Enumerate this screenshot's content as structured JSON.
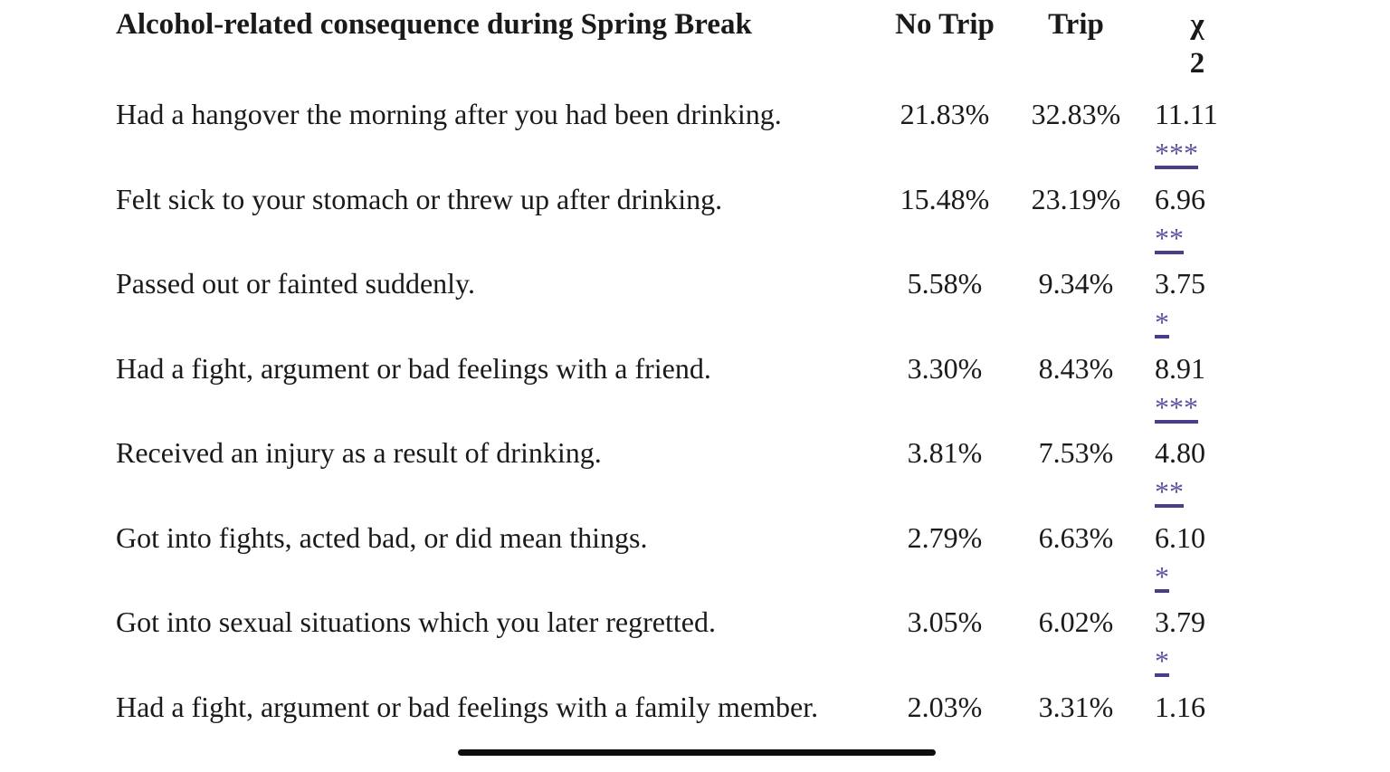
{
  "table": {
    "headers": {
      "consequence": "Alcohol-related consequence during Spring Break",
      "no_trip": "No Trip",
      "trip": "Trip",
      "chi_symbol": "χ",
      "chi_exponent": "2"
    },
    "rows": [
      {
        "consequence": "Had a hangover the morning after you had been drinking.",
        "no_trip": "21.83%",
        "trip": "32.83%",
        "chi": "11.11",
        "sig": "***"
      },
      {
        "consequence": "Felt sick to your stomach or threw up after drinking.",
        "no_trip": "15.48%",
        "trip": "23.19%",
        "chi": "6.96",
        "sig": "**"
      },
      {
        "consequence": "Passed out or fainted suddenly.",
        "no_trip": "5.58%",
        "trip": "9.34%",
        "chi": "3.75",
        "sig": "*"
      },
      {
        "consequence": "Had a fight, argument or bad feelings with a friend.",
        "no_trip": "3.30%",
        "trip": "8.43%",
        "chi": "8.91",
        "sig": "***"
      },
      {
        "consequence": "Received an injury as a result of drinking.",
        "no_trip": "3.81%",
        "trip": "7.53%",
        "chi": "4.80",
        "sig": "**"
      },
      {
        "consequence": "Got into fights, acted bad, or did mean things.",
        "no_trip": "2.79%",
        "trip": "6.63%",
        "chi": "6.10",
        "sig": "*"
      },
      {
        "consequence": "Got into sexual situations which you later regretted.",
        "no_trip": "3.05%",
        "trip": "6.02%",
        "chi": "3.79",
        "sig": "*"
      },
      {
        "consequence": "Had a fight, argument or bad feelings with a family member.",
        "no_trip": "2.03%",
        "trip": "3.31%",
        "chi": "1.16",
        "sig": ""
      }
    ],
    "colors": {
      "text": "#1c191c",
      "sig_link": "#6252a0",
      "sig_underline": "#4b3c8c",
      "divider": "#0d0d0d"
    }
  }
}
